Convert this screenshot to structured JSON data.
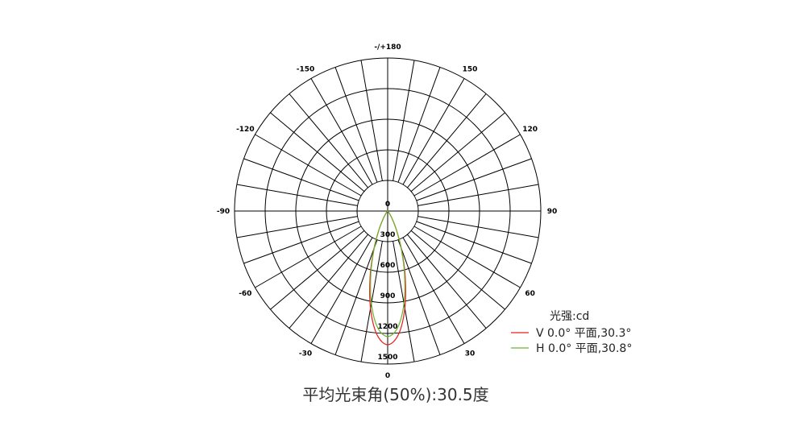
{
  "chart_data": {
    "type": "polar-line",
    "title": "平均光束角(50%):30.5度",
    "unit_label": "光强:cd",
    "radial_ticks": [
      "0",
      "300",
      "600",
      "900",
      "1200",
      "1500"
    ],
    "radial_range": [
      0,
      1500
    ],
    "angle_ticks": [
      "0",
      "30",
      "60",
      "90",
      "120",
      "150",
      "-/+180",
      "-150",
      "-120",
      "-90",
      "-60",
      "-30"
    ],
    "angle_tick_values": [
      0,
      30,
      60,
      90,
      120,
      150,
      180,
      -150,
      -120,
      -90,
      -60,
      -30
    ],
    "grid": true,
    "legend_position": "bottom-right",
    "angles": [
      -45,
      -40,
      -35,
      -30,
      -25,
      -20,
      -15,
      -10,
      -5,
      0,
      5,
      10,
      15,
      20,
      25,
      30,
      35,
      40,
      45
    ],
    "series": [
      {
        "name": "V  0.0° 平面,30.3°",
        "color": "#e8201e",
        "values": [
          3,
          10,
          33,
          87,
          199,
          392,
          664,
          968,
          1214,
          1310,
          1214,
          968,
          664,
          392,
          199,
          87,
          33,
          10,
          3
        ]
      },
      {
        "name": "H  0.0° 平面,30.8°",
        "color": "#6ab42d",
        "values": [
          4,
          11,
          34,
          89,
          198,
          382,
          637,
          919,
          1144,
          1230,
          1144,
          919,
          637,
          382,
          198,
          89,
          34,
          11,
          4
        ]
      }
    ]
  }
}
